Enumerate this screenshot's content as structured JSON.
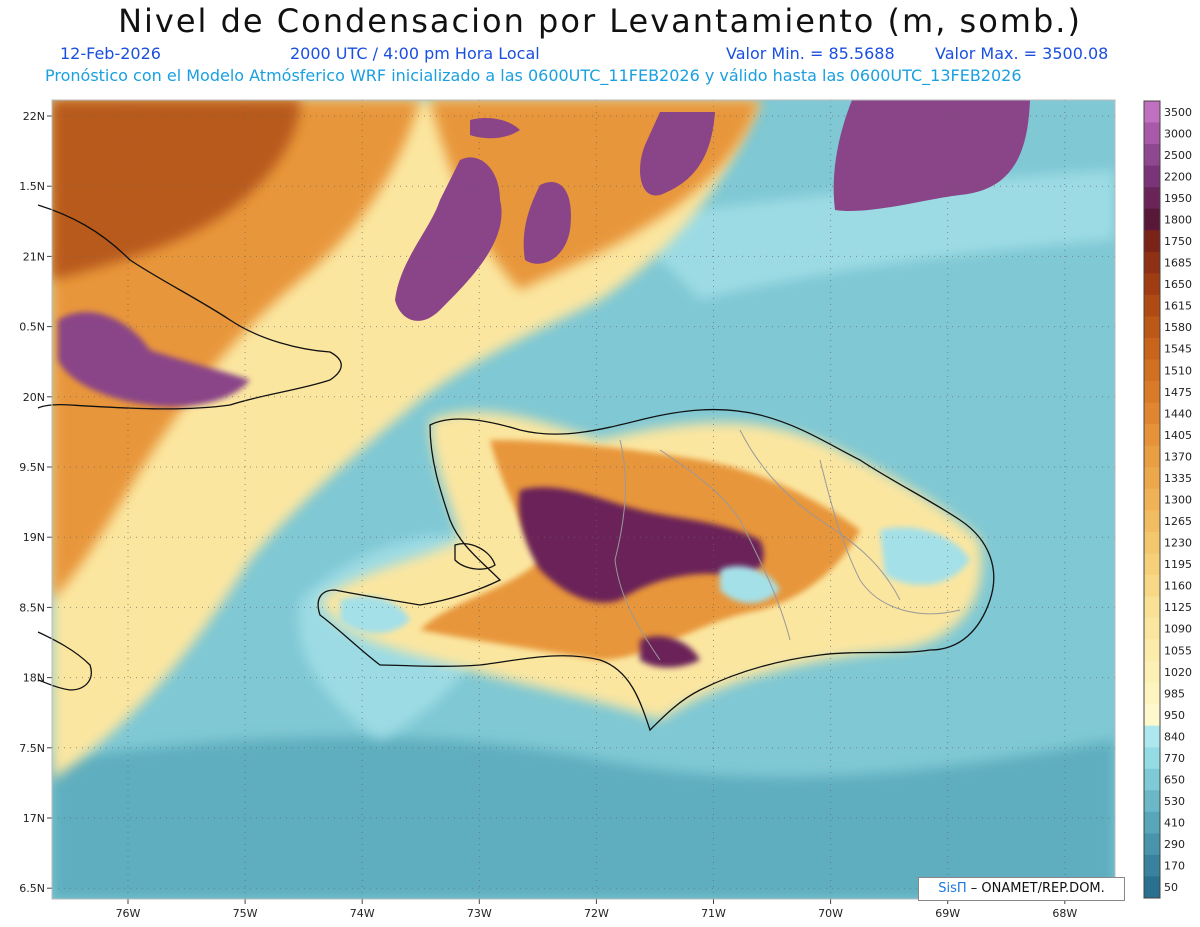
{
  "header": {
    "title": "Nivel de Condensacion por Levantamiento (m, somb.)",
    "date": "12-Feb-2026",
    "time": "2000 UTC / 4:00 pm Hora Local",
    "min_value": "Valor Min. = 85.5688",
    "max_value": "Valor Max. = 3500.08",
    "forecast_note": "Pronóstico con el Modelo Atmósferico WRF inicializado a las 0600UTC_11FEB2026 y válido hasta las  0600UTC_13FEB2026"
  },
  "axes": {
    "lat_labels": [
      "22N",
      "1.5N",
      "21N",
      "0.5N",
      "20N",
      "9.5N",
      "19N",
      "8.5N",
      "18N",
      "7.5N",
      "17N",
      "6.5N"
    ],
    "lon_labels": [
      "76W",
      "75W",
      "74W",
      "73W",
      "72W",
      "71W",
      "70W",
      "69W",
      "68W"
    ]
  },
  "colorbar": {
    "labels": [
      "3500",
      "3000",
      "2500",
      "2200",
      "1950",
      "1800",
      "1750",
      "1685",
      "1650",
      "1615",
      "1580",
      "1545",
      "1510",
      "1475",
      "1440",
      "1405",
      "1370",
      "1335",
      "1300",
      "1265",
      "1230",
      "1195",
      "1160",
      "1125",
      "1090",
      "1055",
      "1020",
      "985",
      "950",
      "840",
      "770",
      "650",
      "530",
      "410",
      "290",
      "170",
      "50"
    ],
    "colors": [
      "#c070c0",
      "#a85aa8",
      "#8e4890",
      "#7a3478",
      "#6a2458",
      "#5a1838",
      "#7a2418",
      "#8e3014",
      "#a03c12",
      "#b04a14",
      "#bc5818",
      "#c8641c",
      "#d27022",
      "#da7a28",
      "#e08630",
      "#e69238",
      "#ea9e42",
      "#eea84c",
      "#f0b256",
      "#f2bc62",
      "#f4c66e",
      "#f6cf7a",
      "#f8d886",
      "#fae094",
      "#fbe6a0",
      "#fcecac",
      "#fdf0b6",
      "#fef4c0",
      "#fef8cc",
      "#aee8ee",
      "#94dce4",
      "#7ecad6",
      "#6ab8c8",
      "#58a6ba",
      "#4894ac",
      "#38829e",
      "#2a7090"
    ]
  },
  "credit": {
    "brand": "SisΠ",
    "org": " – ONAMET/REP.DOM."
  },
  "map_colors": {
    "ocean": "#7fc8d4",
    "ocean_deep": "#5eaebf",
    "ocean_light": "#a4e0e8",
    "land_yellow": "#fbe6a0",
    "orange": "#e8963a",
    "dark_orange": "#b85a1a",
    "purple": "#8a4488",
    "dark_purple": "#6a2458"
  }
}
